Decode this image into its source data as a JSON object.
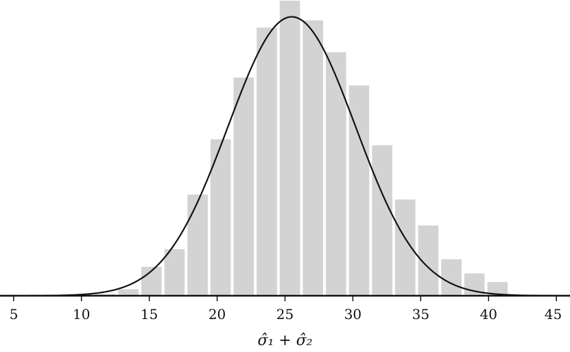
{
  "chart_data": {
    "type": "bar",
    "title": "",
    "xlabel": "σ̂₁ + σ̂₂",
    "ylabel": "",
    "xlim": [
      4,
      46
    ],
    "ylim": [
      0,
      0.09
    ],
    "xticks": [
      5,
      10,
      15,
      20,
      25,
      30,
      35,
      40,
      45
    ],
    "bin_width": 1.7,
    "bars": [
      {
        "x": 11.76,
        "y": 0.0005
      },
      {
        "x": 13.46,
        "y": 0.002
      },
      {
        "x": 15.16,
        "y": 0.0088
      },
      {
        "x": 16.86,
        "y": 0.0142
      },
      {
        "x": 18.56,
        "y": 0.0308
      },
      {
        "x": 20.26,
        "y": 0.0476
      },
      {
        "x": 21.96,
        "y": 0.0664
      },
      {
        "x": 23.66,
        "y": 0.0816
      },
      {
        "x": 25.36,
        "y": 0.0898
      },
      {
        "x": 27.06,
        "y": 0.0838
      },
      {
        "x": 28.76,
        "y": 0.0741
      },
      {
        "x": 30.46,
        "y": 0.064
      },
      {
        "x": 32.16,
        "y": 0.0458
      },
      {
        "x": 33.86,
        "y": 0.0293
      },
      {
        "x": 35.56,
        "y": 0.0214
      },
      {
        "x": 37.26,
        "y": 0.0111
      },
      {
        "x": 38.96,
        "y": 0.0068
      },
      {
        "x": 40.66,
        "y": 0.0042
      }
    ],
    "curve": {
      "type": "normal-density",
      "mean": 25.5,
      "sd": 4.7
    },
    "colors": {
      "bars": "#d3d3d3",
      "curve": "#111111",
      "axis": "#111111"
    },
    "grid": false,
    "legend": "none"
  }
}
